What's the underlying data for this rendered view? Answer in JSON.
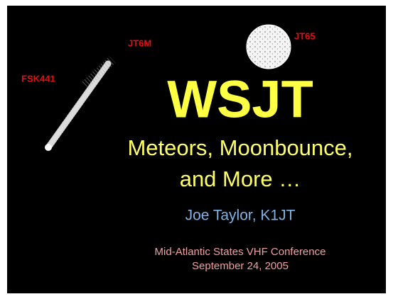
{
  "slide": {
    "mode_labels": {
      "fsk441": "FSK441",
      "jt6m": "JT6M",
      "jt65": "JT65"
    },
    "title": "WSJT",
    "subtitle_lines": [
      "Meteors, Moonbounce,",
      "and More …"
    ],
    "author": "Joe Taylor, K1JT",
    "event": "Mid-Atlantic States VHF Conference",
    "date": "September 24, 2005"
  }
}
